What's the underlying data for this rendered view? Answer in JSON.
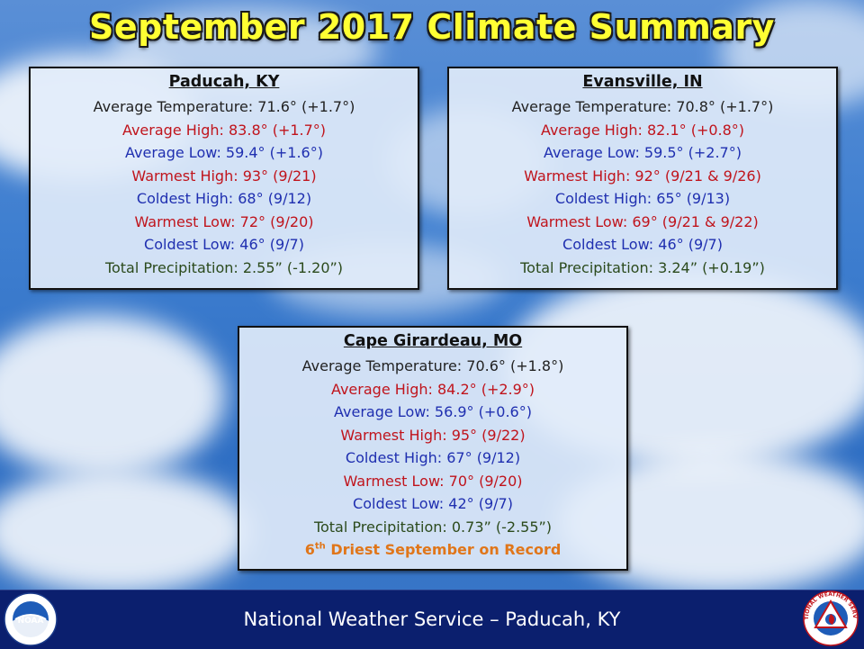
{
  "title": "September 2017 Climate Summary",
  "colors": {
    "title": "#ffff33",
    "footer": "#0b1f6e",
    "red": "#c0141c",
    "blue": "#1f2fb0",
    "green": "#2b4a1c",
    "orange": "#e0761a"
  },
  "stations": [
    {
      "name": "Paducah, KY",
      "lines": [
        "Average Temperature: 71.6° (+1.7°)",
        "Average High: 83.8° (+1.7°)",
        "Average Low: 59.4° (+1.6°)",
        "Warmest High: 93° (9/21)",
        "Coldest High: 68° (9/12)",
        "Warmest Low: 72° (9/20)",
        "Coldest Low: 46° (9/7)",
        "Total Precipitation: 2.55” (-1.20”)"
      ]
    },
    {
      "name": "Evansville, IN",
      "lines": [
        "Average Temperature: 70.8° (+1.7°)",
        "Average High: 82.1° (+0.8°)",
        "Average Low: 59.5° (+2.7°)",
        "Warmest High: 92° (9/21 & 9/26)",
        "Coldest High: 65° (9/13)",
        "Warmest Low: 69° (9/21 & 9/22)",
        "Coldest Low: 46° (9/7)",
        "Total Precipitation: 3.24” (+0.19”)"
      ]
    },
    {
      "name": "Cape Girardeau, MO",
      "lines": [
        "Average Temperature: 70.6° (+1.8°)",
        "Average High: 84.2° (+2.9°)",
        "Average Low: 56.9° (+0.6°)",
        "Warmest High: 95° (9/22)",
        "Coldest High: 67° (9/12)",
        "Warmest Low: 70° (9/20)",
        "Coldest Low: 42° (9/7)",
        "Total Precipitation: 0.73” (-2.55”)"
      ],
      "note_ordinal": "6",
      "note_suffix": "th",
      "note_text": " Driest September on Record"
    }
  ],
  "footer": {
    "text": "National Weather Service – Paducah, KY",
    "left_logo": "noaa-logo",
    "left_logo_text": "NOAA",
    "right_logo": "nws-logo",
    "right_logo_text": "NATIONAL WEATHER SERVICE"
  }
}
